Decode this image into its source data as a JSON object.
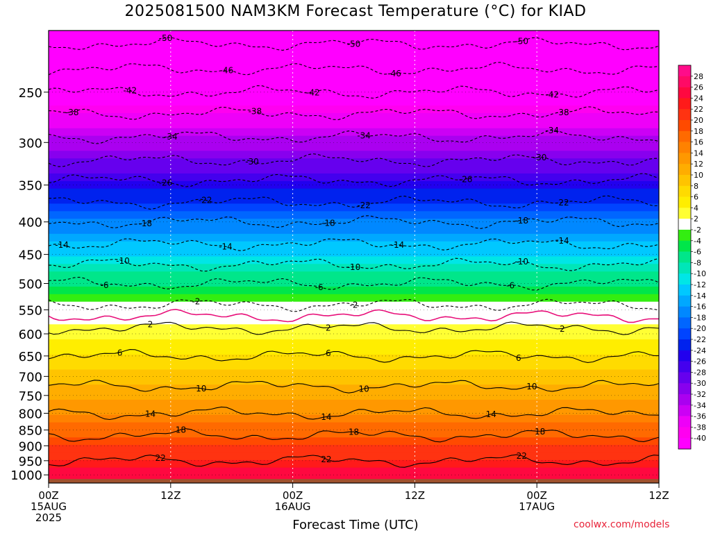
{
  "title": "2025081500 NAM3KM Forecast Temperature (°C) for KIAD",
  "credit": "coolwx.com/models",
  "chart_data": {
    "type": "heatmap",
    "title": "2025081500 NAM3KM Forecast Temperature (°C) for KIAD",
    "xlabel": "Forecast Time (UTC)",
    "ylabel": "",
    "x_unit": "hours from 2025-08-15 00Z",
    "xlim": [
      0,
      60
    ],
    "ylim": [
      1030,
      200
    ],
    "y_scale": "log",
    "x_ticks": [
      {
        "x": 0,
        "lines": [
          "00Z",
          "15AUG",
          "2025"
        ]
      },
      {
        "x": 12,
        "lines": [
          "12Z"
        ]
      },
      {
        "x": 24,
        "lines": [
          "00Z",
          "16AUG"
        ]
      },
      {
        "x": 36,
        "lines": [
          "12Z"
        ]
      },
      {
        "x": 48,
        "lines": [
          "00Z",
          "17AUG"
        ]
      },
      {
        "x": 60,
        "lines": [
          "12Z"
        ]
      }
    ],
    "y_ticks": [
      250,
      300,
      350,
      400,
      450,
      500,
      550,
      600,
      650,
      700,
      750,
      800,
      850,
      900,
      950,
      1000
    ],
    "profile": [
      {
        "p": 200,
        "t": -52
      },
      {
        "p": 220,
        "t": -48
      },
      {
        "p": 250,
        "t": -42
      },
      {
        "p": 270,
        "t": -38
      },
      {
        "p": 300,
        "t": -33
      },
      {
        "p": 320,
        "t": -30
      },
      {
        "p": 350,
        "t": -25
      },
      {
        "p": 380,
        "t": -21
      },
      {
        "p": 400,
        "t": -18
      },
      {
        "p": 450,
        "t": -12
      },
      {
        "p": 500,
        "t": -6
      },
      {
        "p": 550,
        "t": -1
      },
      {
        "p": 600,
        "t": 3
      },
      {
        "p": 650,
        "t": 6
      },
      {
        "p": 700,
        "t": 9
      },
      {
        "p": 750,
        "t": 11
      },
      {
        "p": 800,
        "t": 14
      },
      {
        "p": 850,
        "t": 17
      },
      {
        "p": 900,
        "t": 20
      },
      {
        "p": 950,
        "t": 22
      },
      {
        "p": 1000,
        "t": 25
      },
      {
        "p": 1030,
        "t": 26
      }
    ],
    "contours": [
      {
        "value": -50,
        "dashed": true,
        "labels": [
          {
            "x": 11.5,
            "text": "-50"
          },
          {
            "x": 30,
            "text": "-50"
          },
          {
            "x": 46.5,
            "text": "-50"
          }
        ]
      },
      {
        "value": -46,
        "dashed": true,
        "labels": [
          {
            "x": 17.5,
            "text": "-46"
          },
          {
            "x": 34,
            "text": "-46"
          }
        ]
      },
      {
        "value": -42,
        "dashed": true,
        "labels": [
          {
            "x": 8,
            "text": "-42"
          },
          {
            "x": 26,
            "text": "-42"
          },
          {
            "x": 49.5,
            "text": "-42"
          }
        ]
      },
      {
        "value": -38,
        "dashed": true,
        "labels": [
          {
            "x": 2.3,
            "text": "-38"
          },
          {
            "x": 20.3,
            "text": "-38"
          },
          {
            "x": 50.5,
            "text": "-38"
          }
        ]
      },
      {
        "value": -34,
        "dashed": true,
        "labels": [
          {
            "x": 12,
            "text": "-34"
          },
          {
            "x": 31,
            "text": "-34"
          },
          {
            "x": 49.5,
            "text": "-34"
          }
        ]
      },
      {
        "value": -30,
        "dashed": true,
        "labels": [
          {
            "x": 20,
            "text": "-30"
          },
          {
            "x": 48.3,
            "text": "-30"
          }
        ]
      },
      {
        "value": -26,
        "dashed": true,
        "labels": [
          {
            "x": 11.5,
            "text": "-26"
          },
          {
            "x": 41,
            "text": "-26"
          }
        ]
      },
      {
        "value": -22,
        "dashed": true,
        "labels": [
          {
            "x": 15.4,
            "text": "-22"
          },
          {
            "x": 31,
            "text": "-22"
          },
          {
            "x": 50.5,
            "text": "-22"
          }
        ]
      },
      {
        "value": -18,
        "dashed": true,
        "labels": [
          {
            "x": 9.5,
            "text": "-18"
          },
          {
            "x": 27.5,
            "text": "-18"
          },
          {
            "x": 46.5,
            "text": "-18"
          }
        ]
      },
      {
        "value": -14,
        "dashed": true,
        "labels": [
          {
            "x": 1.3,
            "text": "-14"
          },
          {
            "x": 17.4,
            "text": "-14"
          },
          {
            "x": 34.3,
            "text": "-14"
          },
          {
            "x": 50.5,
            "text": "-14"
          }
        ]
      },
      {
        "value": -10,
        "dashed": true,
        "labels": [
          {
            "x": 7.3,
            "text": "-10"
          },
          {
            "x": 30,
            "text": "-10"
          },
          {
            "x": 46.5,
            "text": "-10"
          }
        ]
      },
      {
        "value": -6,
        "dashed": true,
        "labels": [
          {
            "x": 5.5,
            "text": "-6"
          },
          {
            "x": 26.6,
            "text": "-6"
          },
          {
            "x": 45.4,
            "text": "-6"
          }
        ]
      },
      {
        "value": -2,
        "dashed": true,
        "labels": [
          {
            "x": 14.5,
            "text": "-2"
          },
          {
            "x": 30,
            "text": "-2"
          }
        ]
      },
      {
        "value": 2,
        "dashed": false,
        "labels": [
          {
            "x": 10,
            "text": "2"
          },
          {
            "x": 27.5,
            "text": "2"
          },
          {
            "x": 50.5,
            "text": "2"
          }
        ]
      },
      {
        "value": 6,
        "dashed": false,
        "labels": [
          {
            "x": 7,
            "text": "6"
          },
          {
            "x": 27.5,
            "text": "6"
          },
          {
            "x": 46.2,
            "text": "6"
          }
        ]
      },
      {
        "value": 10,
        "dashed": false,
        "labels": [
          {
            "x": 15,
            "text": "10"
          },
          {
            "x": 31,
            "text": "10"
          },
          {
            "x": 47.5,
            "text": "10"
          }
        ]
      },
      {
        "value": 14,
        "dashed": false,
        "labels": [
          {
            "x": 10,
            "text": "14"
          },
          {
            "x": 27.3,
            "text": "14"
          },
          {
            "x": 43.5,
            "text": "14"
          }
        ]
      },
      {
        "value": 18,
        "dashed": false,
        "labels": [
          {
            "x": 13,
            "text": "18"
          },
          {
            "x": 30,
            "text": "18"
          },
          {
            "x": 48.3,
            "text": "18"
          }
        ]
      },
      {
        "value": 22,
        "dashed": false,
        "labels": [
          {
            "x": 11,
            "text": "22"
          },
          {
            "x": 27.3,
            "text": "22"
          },
          {
            "x": 46.5,
            "text": "22"
          }
        ]
      }
    ],
    "freezing_line": {
      "value": 0,
      "color": "#e8107a"
    },
    "ground_color": "#a0522d",
    "colorbar": {
      "levels": [
        28,
        26,
        24,
        22,
        20,
        18,
        16,
        14,
        12,
        10,
        8,
        6,
        4,
        2,
        -2,
        -4,
        -6,
        -8,
        -10,
        -12,
        -14,
        -16,
        -18,
        -20,
        -22,
        -24,
        -26,
        -28,
        -30,
        -32,
        -34,
        -36,
        -38,
        -40
      ],
      "colors": [
        "#ff0c8a",
        "#ff0a66",
        "#ff0840",
        "#ff1a1a",
        "#ff3311",
        "#ff4a00",
        "#ff6a00",
        "#ff8200",
        "#ff9800",
        "#ffad00",
        "#ffc400",
        "#ffdb00",
        "#ffee00",
        "#ffff33",
        "#ffffff",
        "#33ee11",
        "#00e64a",
        "#00e68a",
        "#00e6b8",
        "#00e6e6",
        "#00c8ff",
        "#00a8ff",
        "#0088ff",
        "#0066ff",
        "#0044ff",
        "#0022ee",
        "#2200ee",
        "#4400ee",
        "#6600ee",
        "#8800ee",
        "#aa00f0",
        "#cc00f5",
        "#ee00f8",
        "#ff00f0",
        "#ff00ff"
      ]
    }
  }
}
